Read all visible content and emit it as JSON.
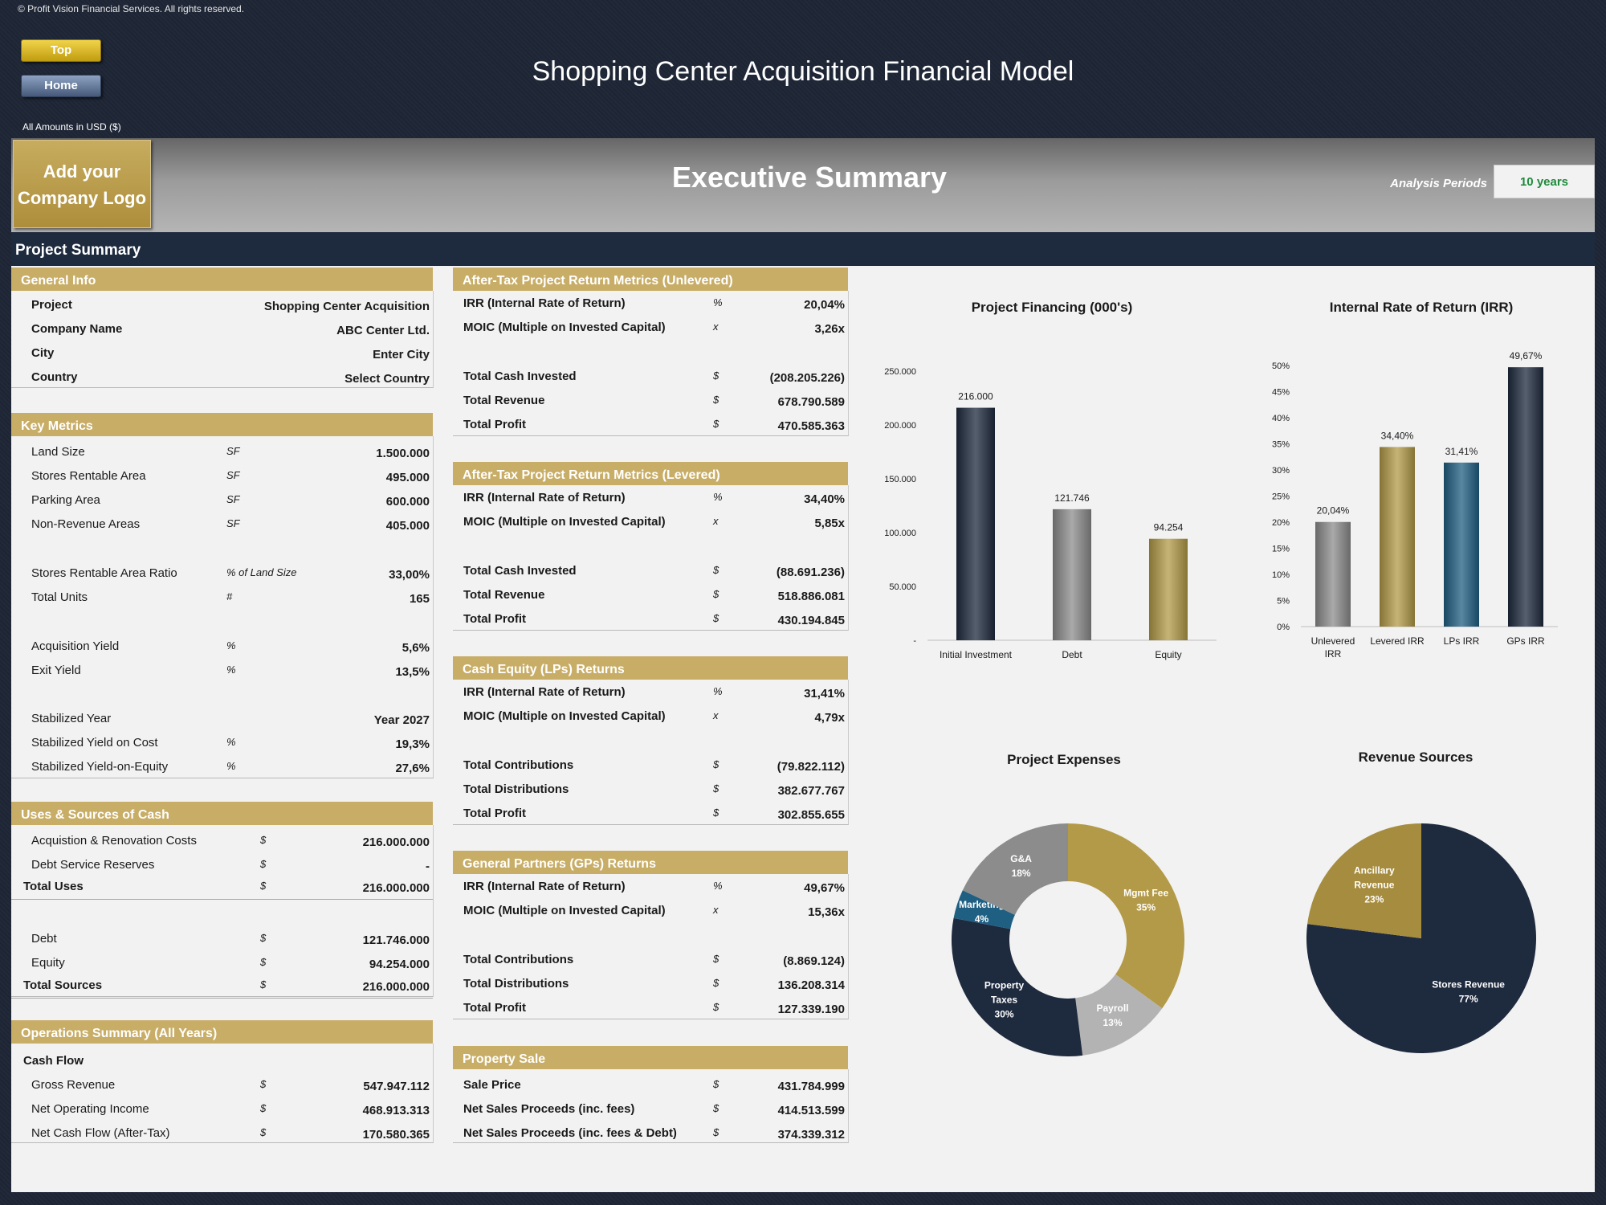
{
  "header": {
    "copyright": "© Profit Vision Financial Services. All rights reserved.",
    "top_label": "Top",
    "home_label": "Home",
    "title": "Shopping Center Acquisition Financial Model",
    "amounts_label": "All Amounts in  USD ($)"
  },
  "banner": {
    "logo_line1": "Add your",
    "logo_line2": "Company Logo",
    "title": "Executive Summary",
    "analysis_label": "Analysis Periods",
    "analysis_value": "10 years"
  },
  "project_summary_title": "Project Summary",
  "general_info": {
    "title": "General Info",
    "rows": [
      {
        "label": "Project",
        "value": "Shopping Center Acquisition"
      },
      {
        "label": "Company Name",
        "value": "ABC Center Ltd."
      },
      {
        "label": "City",
        "value": "Enter City"
      },
      {
        "label": "Country",
        "value": "Select Country"
      }
    ]
  },
  "key_metrics": {
    "title": "Key Metrics",
    "rows": [
      {
        "label": "Land Size",
        "unit": "SF",
        "value": "1.500.000"
      },
      {
        "label": "Stores Rentable Area",
        "unit": "SF",
        "value": "495.000"
      },
      {
        "label": "Parking Area",
        "unit": "SF",
        "value": "600.000"
      },
      {
        "label": "Non-Revenue Areas",
        "unit": "SF",
        "value": "405.000"
      },
      {
        "label": "Stores Rentable Area Ratio",
        "unit": "% of Land Size",
        "value": "33,00%"
      },
      {
        "label": "Total Units",
        "unit": "#",
        "value": "165"
      },
      {
        "label": "Acquisition Yield",
        "unit": "%",
        "value": "5,6%"
      },
      {
        "label": "Exit Yield",
        "unit": "%",
        "value": "13,5%"
      },
      {
        "label": "Stabilized Year",
        "unit": "",
        "value": "Year 2027"
      },
      {
        "label": "Stabilized Yield on Cost",
        "unit": "%",
        "value": "19,3%"
      },
      {
        "label": "Stabilized Yield-on-Equity",
        "unit": "%",
        "value": "27,6%"
      }
    ]
  },
  "uses_sources": {
    "title": "Uses & Sources of Cash",
    "rows": [
      {
        "label": "Acquistion & Renovation Costs",
        "unit": "$",
        "value": "216.000.000"
      },
      {
        "label": "Debt Service Reserves",
        "unit": "$",
        "value": "-"
      },
      {
        "label": "Total Uses",
        "unit": "$",
        "value": "216.000.000"
      },
      {
        "label": "Debt",
        "unit": "$",
        "value": "121.746.000"
      },
      {
        "label": "Equity",
        "unit": "$",
        "value": "94.254.000"
      },
      {
        "label": "Total Sources",
        "unit": "$",
        "value": "216.000.000"
      }
    ]
  },
  "operations": {
    "title": "Operations Summary (All Years)",
    "subtitle": "Cash Flow",
    "rows": [
      {
        "label": "Gross Revenue",
        "unit": "$",
        "value": "547.947.112"
      },
      {
        "label": "Net Operating Income",
        "unit": "$",
        "value": "468.913.313"
      },
      {
        "label": "Net Cash Flow (After-Tax)",
        "unit": "$",
        "value": "170.580.365"
      }
    ]
  },
  "unlevered": {
    "title": "After-Tax Project Return Metrics (Unlevered)",
    "rows": [
      {
        "label": "IRR (Internal Rate of Return)",
        "unit": "%",
        "value": "20,04%"
      },
      {
        "label": "MOIC (Multiple on Invested Capital)",
        "unit": "x",
        "value": "3,26x"
      },
      {
        "label": "Total Cash Invested",
        "unit": "$",
        "value": "(208.205.226)"
      },
      {
        "label": "Total Revenue",
        "unit": "$",
        "value": "678.790.589"
      },
      {
        "label": "Total Profit",
        "unit": "$",
        "value": "470.585.363"
      }
    ]
  },
  "levered": {
    "title": "After-Tax Project Return Metrics (Levered)",
    "rows": [
      {
        "label": "IRR (Internal Rate of Return)",
        "unit": "%",
        "value": "34,40%"
      },
      {
        "label": "MOIC (Multiple on Invested Capital)",
        "unit": "x",
        "value": "5,85x"
      },
      {
        "label": "Total Cash Invested",
        "unit": "$",
        "value": "(88.691.236)"
      },
      {
        "label": "Total Revenue",
        "unit": "$",
        "value": "518.886.081"
      },
      {
        "label": "Total Profit",
        "unit": "$",
        "value": "430.194.845"
      }
    ]
  },
  "lps": {
    "title": "Cash Equity (LPs) Returns",
    "rows": [
      {
        "label": "IRR (Internal Rate of Return)",
        "unit": "%",
        "value": "31,41%"
      },
      {
        "label": "MOIC (Multiple on Invested Capital)",
        "unit": "x",
        "value": "4,79x"
      },
      {
        "label": "Total Contributions",
        "unit": "$",
        "value": "(79.822.112)"
      },
      {
        "label": "Total Distributions",
        "unit": "$",
        "value": "382.677.767"
      },
      {
        "label": "Total Profit",
        "unit": "$",
        "value": "302.855.655"
      }
    ]
  },
  "gps": {
    "title": "General Partners (GPs) Returns",
    "rows": [
      {
        "label": "IRR (Internal Rate of Return)",
        "unit": "%",
        "value": "49,67%"
      },
      {
        "label": "MOIC (Multiple on Invested Capital)",
        "unit": "x",
        "value": "15,36x"
      },
      {
        "label": "Total Contributions",
        "unit": "$",
        "value": "(8.869.124)"
      },
      {
        "label": "Total Distributions",
        "unit": "$",
        "value": "136.208.314"
      },
      {
        "label": "Total Profit",
        "unit": "$",
        "value": "127.339.190"
      }
    ]
  },
  "property_sale": {
    "title": "Property Sale",
    "rows": [
      {
        "label": "Sale Price",
        "unit": "$",
        "value": "431.784.999"
      },
      {
        "label": "Net Sales Proceeds (inc. fees)",
        "unit": "$",
        "value": "414.513.599"
      },
      {
        "label": "Net Sales Proceeds (inc. fees & Debt)",
        "unit": "$",
        "value": "374.339.312"
      }
    ]
  },
  "colors": {
    "navy": "#1e2a3e",
    "gold": "#c8ad67",
    "grey": "#8c8c8c",
    "blue": "#1f5f82",
    "light_grey": "#b3b3b3",
    "irr_green": "#1f8a3c"
  },
  "chart_data": [
    {
      "type": "bar",
      "title": "Project Financing (000's)",
      "categories": [
        "Initial Investment",
        "Debt",
        "Equity"
      ],
      "values": [
        216000,
        121746,
        94254
      ],
      "value_labels": [
        "216.000",
        "121.746",
        "94.254"
      ],
      "ylim": [
        0,
        250000
      ],
      "yticks": [
        "-",
        "50.000",
        "100.000",
        "150.000",
        "200.000",
        "250.000"
      ],
      "colors": [
        "#1e2a3e",
        "#8c8c8c",
        "#b39a48"
      ]
    },
    {
      "type": "bar",
      "title": "Internal Rate of Return (IRR)",
      "categories": [
        "Unlevered IRR",
        "Levered IRR",
        "LPs IRR",
        "GPs IRR"
      ],
      "values": [
        20.04,
        34.4,
        31.41,
        49.67
      ],
      "value_labels": [
        "20,04%",
        "34,40%",
        "31,41%",
        "49,67%"
      ],
      "ylim": [
        0,
        50
      ],
      "yticks": [
        "0%",
        "5%",
        "10%",
        "15%",
        "20%",
        "25%",
        "30%",
        "35%",
        "40%",
        "45%",
        "50%"
      ],
      "colors": [
        "#8c8c8c",
        "#b39a48",
        "#1f5f82",
        "#1e2a3e"
      ]
    },
    {
      "type": "pie",
      "title": "Project Expenses",
      "donut": true,
      "slices": [
        {
          "label": "Mgmt Fee",
          "value": 35,
          "pct": "35%",
          "color": "#b39a48"
        },
        {
          "label": "Payroll",
          "value": 13,
          "pct": "13%",
          "color": "#b3b3b3"
        },
        {
          "label": "Property Taxes",
          "value": 30,
          "pct": "30%",
          "color": "#1e2a3e"
        },
        {
          "label": "Marketing",
          "value": 4,
          "pct": "4%",
          "color": "#1f5f82"
        },
        {
          "label": "G&A",
          "value": 18,
          "pct": "18%",
          "color": "#8c8c8c"
        }
      ]
    },
    {
      "type": "pie",
      "title": "Revenue Sources",
      "donut": false,
      "slices": [
        {
          "label": "Stores Revenue",
          "value": 77,
          "pct": "77%",
          "color": "#1e2a3e"
        },
        {
          "label": "Ancillary Revenue",
          "value": 23,
          "pct": "23%",
          "color": "#a68c3e"
        }
      ]
    }
  ]
}
